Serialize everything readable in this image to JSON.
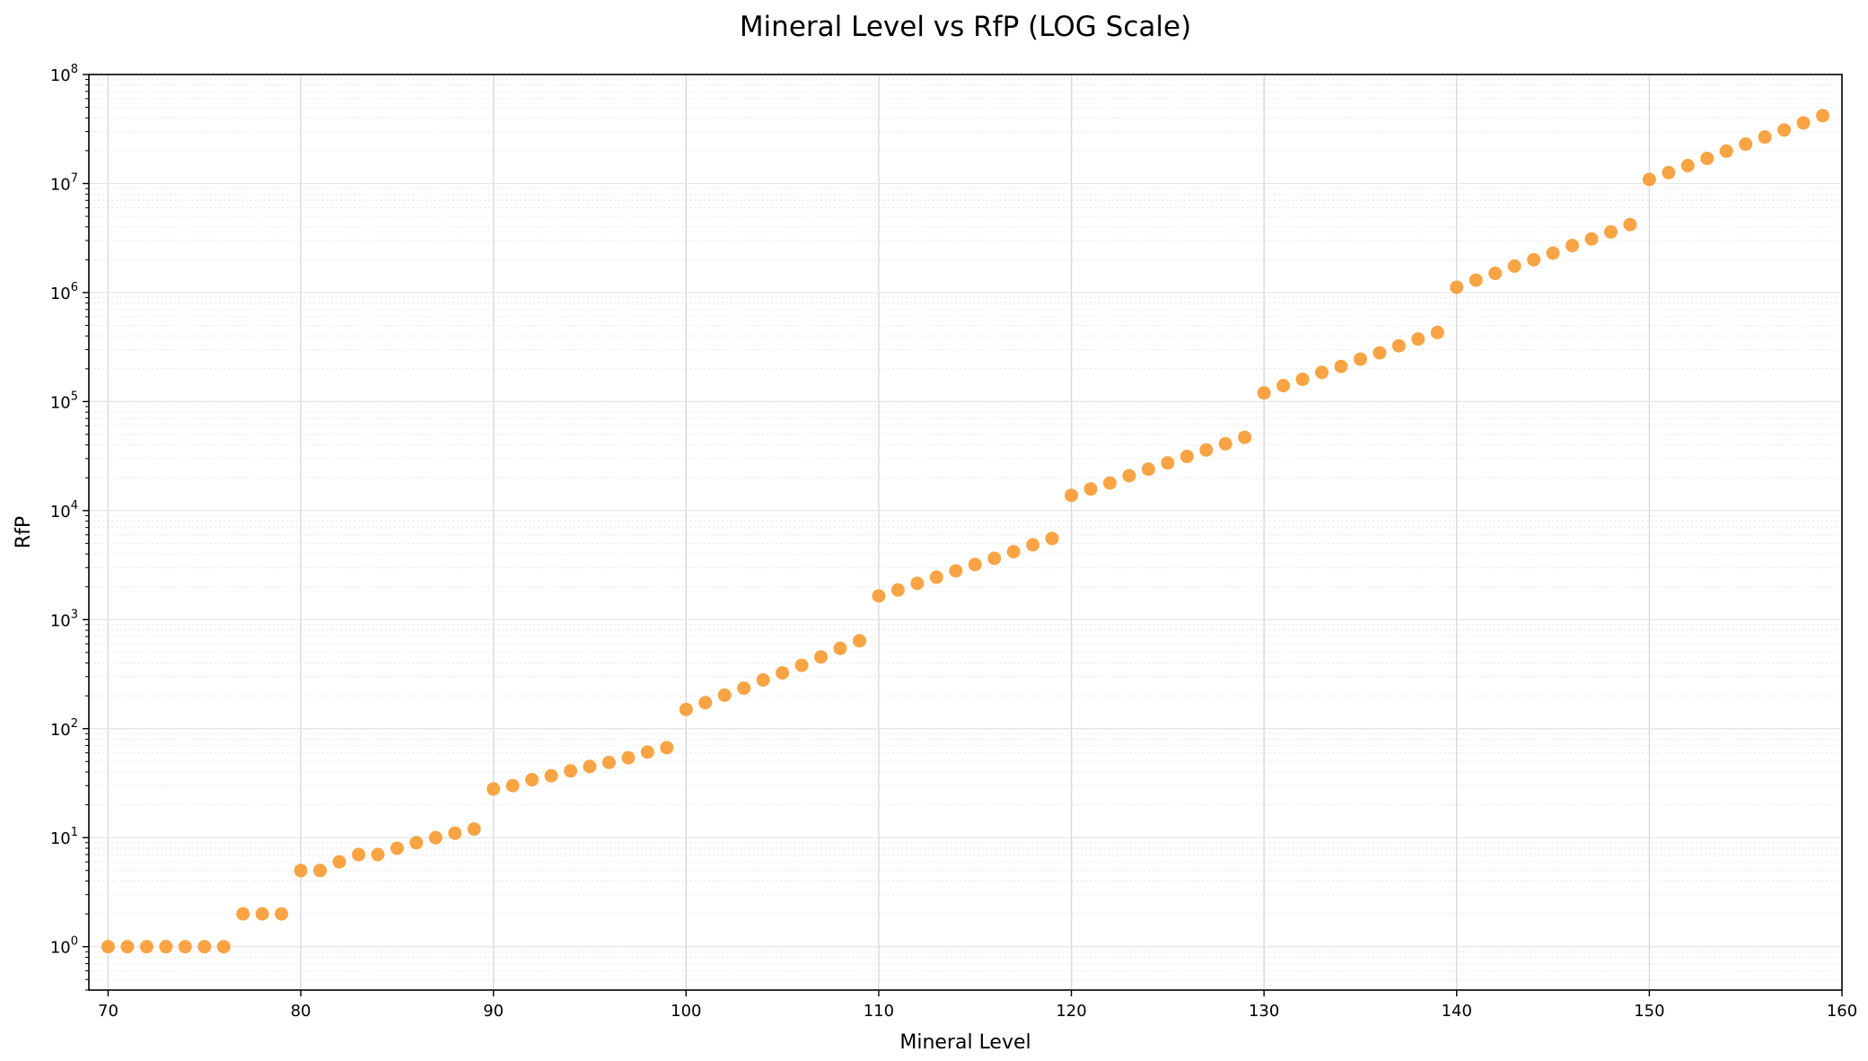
{
  "chart_data": {
    "type": "scatter",
    "title": "Mineral Level vs RfP (LOG Scale)",
    "xlabel": "Mineral Level",
    "ylabel": "RfP",
    "xlim": [
      69,
      160
    ],
    "ylim": [
      0.4,
      100000000
    ],
    "yscale": "log",
    "grid": true,
    "point_color": "#f89c34",
    "x_ticks": [
      70,
      80,
      90,
      100,
      110,
      120,
      130,
      140,
      150,
      160
    ],
    "y_ticks": [
      {
        "value": 1,
        "base": "10",
        "exp": "0"
      },
      {
        "value": 10,
        "base": "10",
        "exp": "1"
      },
      {
        "value": 100,
        "base": "10",
        "exp": "2"
      },
      {
        "value": 1000,
        "base": "10",
        "exp": "3"
      },
      {
        "value": 10000,
        "base": "10",
        "exp": "4"
      },
      {
        "value": 100000,
        "base": "10",
        "exp": "5"
      },
      {
        "value": 1000000,
        "base": "10",
        "exp": "6"
      },
      {
        "value": 10000000,
        "base": "10",
        "exp": "7"
      },
      {
        "value": 100000000,
        "base": "10",
        "exp": "8"
      }
    ],
    "series": [
      {
        "x": [
          70,
          71,
          72,
          73,
          74,
          75,
          76,
          77,
          78,
          79,
          80,
          81,
          82,
          83,
          84,
          85,
          86,
          87,
          88,
          89,
          90,
          91,
          92,
          93,
          94,
          95,
          96,
          97,
          98,
          99,
          100,
          101,
          102,
          103,
          104,
          105,
          106,
          107,
          108,
          109,
          110,
          111,
          112,
          113,
          114,
          115,
          116,
          117,
          118,
          119,
          120,
          121,
          122,
          123,
          124,
          125,
          126,
          127,
          128,
          129,
          130,
          131,
          132,
          133,
          134,
          135,
          136,
          137,
          138,
          139,
          140,
          141,
          142,
          143,
          144,
          145,
          146,
          147,
          148,
          149,
          150,
          151,
          152,
          153,
          154,
          155,
          156,
          157,
          158,
          159
        ],
        "y": [
          1,
          1,
          1,
          1,
          1,
          1,
          1,
          2,
          2,
          2,
          5,
          5,
          6,
          7,
          7,
          8,
          9,
          10,
          11,
          12,
          28,
          30,
          34,
          37,
          41,
          45,
          49,
          54,
          61,
          67,
          150,
          173,
          203,
          235,
          280,
          325,
          381,
          455,
          545,
          640,
          1650,
          1870,
          2150,
          2450,
          2800,
          3200,
          3650,
          4200,
          4850,
          5550,
          13800,
          15800,
          17900,
          20900,
          24000,
          27400,
          31400,
          36000,
          41000,
          47000,
          120000,
          140000,
          160000,
          185000,
          210000,
          245000,
          280000,
          325000,
          375000,
          430000,
          1120000,
          1300000,
          1500000,
          1750000,
          2000000,
          2300000,
          2700000,
          3100000,
          3600000,
          4200000,
          10900000,
          12600000,
          14600000,
          17000000,
          19800000,
          23000000,
          26700000,
          31000000,
          36000000,
          42000000
        ]
      }
    ]
  }
}
